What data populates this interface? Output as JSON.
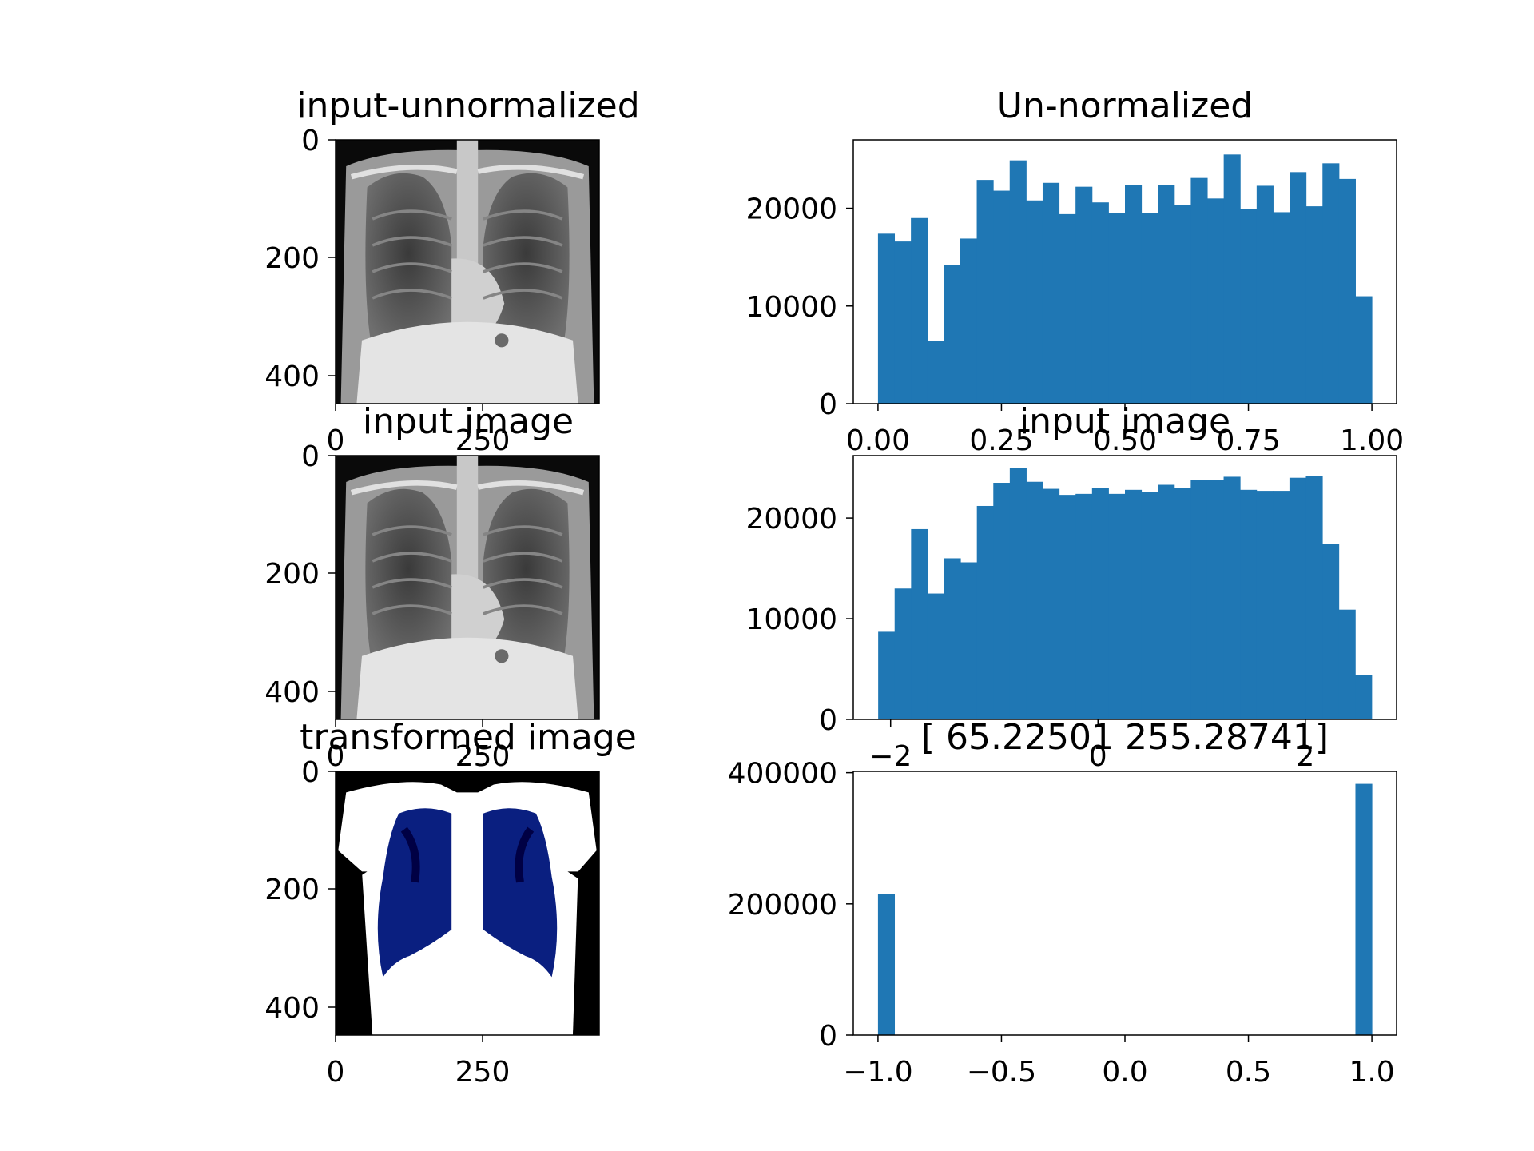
{
  "figure": {
    "background": "#ffffff",
    "bar_color": "#1f77b4",
    "axes_color": "#000000"
  },
  "chart_data": [
    {
      "type": "image",
      "title": "input-unnormalized",
      "content": "chest x-ray, grayscale",
      "colormap": "gray",
      "xlim": [
        0,
        448
      ],
      "ylim": [
        448,
        0
      ],
      "xticks": [
        0,
        250
      ],
      "yticks": [
        0,
        200,
        400
      ],
      "xtick_labels": [
        "0",
        "250"
      ],
      "ytick_labels": [
        "0",
        "200",
        "400"
      ]
    },
    {
      "type": "bar",
      "title": "Un-normalized",
      "bin_range": [
        0.0,
        1.0
      ],
      "bins": 30,
      "values": [
        17400,
        16600,
        19000,
        6400,
        14200,
        16900,
        22900,
        21800,
        24900,
        20800,
        22600,
        19400,
        22200,
        20600,
        19500,
        22400,
        19500,
        22400,
        20300,
        23100,
        21000,
        25500,
        19900,
        22300,
        19600,
        23700,
        20200,
        24600,
        23000,
        11000
      ],
      "xlim": [
        -0.05,
        1.05
      ],
      "ylim": [
        0,
        27000
      ],
      "xticks": [
        0.0,
        0.25,
        0.5,
        0.75,
        1.0
      ],
      "yticks": [
        0,
        10000,
        20000
      ],
      "xtick_labels": [
        "0.00",
        "0.25",
        "0.50",
        "0.75",
        "1.00"
      ],
      "ytick_labels": [
        "0",
        "10000",
        "20000"
      ]
    },
    {
      "type": "image",
      "title": "input image",
      "content": "chest x-ray, grayscale",
      "colormap": "gray",
      "xlim": [
        0,
        448
      ],
      "ylim": [
        448,
        0
      ],
      "xticks": [
        0,
        250
      ],
      "yticks": [
        0,
        200,
        400
      ],
      "xtick_labels": [
        "0",
        "250"
      ],
      "ytick_labels": [
        "0",
        "200",
        "400"
      ]
    },
    {
      "type": "bar",
      "title": "input image",
      "bin_range": [
        -2.12,
        2.64
      ],
      "bins": 30,
      "values": [
        8700,
        13000,
        18900,
        12500,
        16000,
        15600,
        21200,
        23500,
        25000,
        23600,
        22900,
        22300,
        22400,
        23000,
        22400,
        22800,
        22600,
        23300,
        23000,
        23800,
        23800,
        24100,
        22800,
        22700,
        22700,
        24000,
        24200,
        17400,
        10900,
        4400
      ],
      "xlim": [
        -2.36,
        2.88
      ],
      "ylim": [
        0,
        26200
      ],
      "xticks": [
        -2,
        0,
        2
      ],
      "yticks": [
        0,
        10000,
        20000
      ],
      "xtick_labels": [
        "−2",
        "0",
        "2"
      ],
      "ytick_labels": [
        "0",
        "10000",
        "20000"
      ]
    },
    {
      "type": "image",
      "title": "transformed image",
      "content": "chest x-ray, thresholded to white / blue / black",
      "colormap": "binary (white, blue, black)",
      "xlim": [
        0,
        448
      ],
      "ylim": [
        448,
        0
      ],
      "xticks": [
        0,
        250
      ],
      "yticks": [
        0,
        200,
        400
      ],
      "xtick_labels": [
        "0",
        "250"
      ],
      "ytick_labels": [
        "0",
        "200",
        "400"
      ]
    },
    {
      "type": "bar",
      "title": "[ 65.22501 255.28741]",
      "bin_range": [
        -1.0,
        1.0
      ],
      "bins": 30,
      "values": [
        215000,
        0,
        0,
        0,
        0,
        0,
        0,
        0,
        0,
        0,
        0,
        0,
        0,
        0,
        0,
        0,
        0,
        0,
        0,
        0,
        0,
        0,
        0,
        0,
        0,
        0,
        0,
        0,
        0,
        383000
      ],
      "xlim": [
        -1.1,
        1.1
      ],
      "ylim": [
        0,
        402000
      ],
      "xticks": [
        -1.0,
        -0.5,
        0.0,
        0.5,
        1.0
      ],
      "yticks": [
        0,
        200000,
        400000
      ],
      "xtick_labels": [
        "−1.0",
        "−0.5",
        "0.0",
        "0.5",
        "1.0"
      ],
      "ytick_labels": [
        "0",
        "200000",
        "400000"
      ]
    }
  ]
}
